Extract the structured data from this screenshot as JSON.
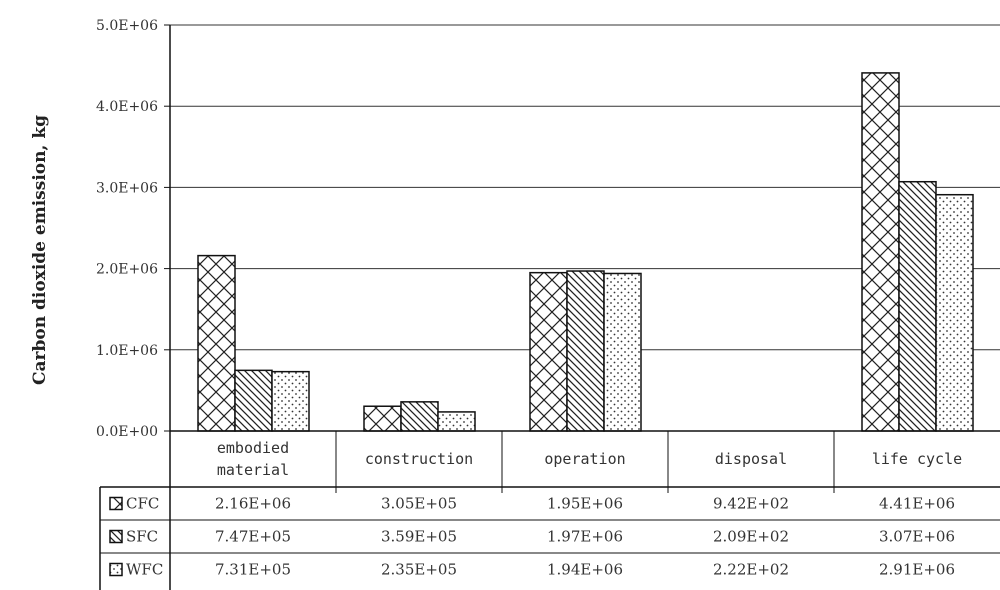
{
  "chart_data": {
    "type": "bar",
    "ylabel": "Carbon dioxide emission, kg",
    "ylim": [
      0,
      5000000
    ],
    "yticks": [
      "0.0E+00",
      "1.0E+06",
      "2.0E+06",
      "3.0E+06",
      "4.0E+06",
      "5.0E+06"
    ],
    "grid": true,
    "categories": [
      [
        "embodied",
        "material"
      ],
      [
        "construction"
      ],
      [
        "operation"
      ],
      [
        "disposal"
      ],
      [
        "life cycle"
      ]
    ],
    "series": [
      {
        "name": "CFC",
        "pattern": "crosshatch",
        "values": [
          2160000,
          305000,
          1950000,
          942,
          4410000
        ],
        "labels": [
          "2.16E+06",
          "3.05E+05",
          "1.95E+06",
          "9.42E+02",
          "4.41E+06"
        ]
      },
      {
        "name": "SFC",
        "pattern": "diagonal",
        "values": [
          747000,
          359000,
          1970000,
          209,
          3070000
        ],
        "labels": [
          "7.47E+05",
          "3.59E+05",
          "1.97E+06",
          "2.09E+02",
          "3.07E+06"
        ]
      },
      {
        "name": "WFC",
        "pattern": "dots",
        "values": [
          731000,
          235000,
          1940000,
          222,
          2910000
        ],
        "labels": [
          "7.31E+05",
          "2.35E+05",
          "1.94E+06",
          "2.22E+02",
          "2.91E+06"
        ]
      }
    ],
    "colors": {
      "bar_fill": "#ffffff",
      "stroke": "#111111",
      "grid": "#333333"
    }
  }
}
